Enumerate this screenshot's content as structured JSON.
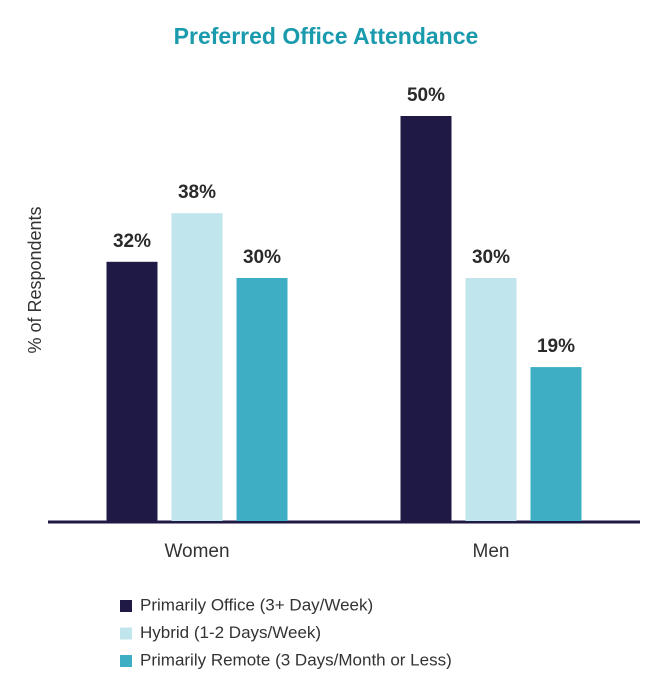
{
  "chart_data": {
    "type": "bar",
    "title": "Preferred Office Attendance",
    "y_label": "% of Respondents",
    "categories": [
      "Women",
      "Men"
    ],
    "series": [
      {
        "name": "Primarily Office (3+ Day/Week)",
        "color": "#1f1a45",
        "values": [
          32,
          50
        ],
        "value_labels": [
          "32%",
          "50%"
        ]
      },
      {
        "name": "Hybrid (1-2 Days/Week)",
        "color": "#c0e5ec",
        "values": [
          38,
          30
        ],
        "value_labels": [
          "38%",
          "30%"
        ]
      },
      {
        "name": "Primarily Remote (3 Days/Month or Less)",
        "color": "#3eaec4",
        "values": [
          30,
          19
        ],
        "value_labels": [
          "30%",
          "19%"
        ]
      }
    ],
    "ylim": [
      0,
      50
    ]
  }
}
